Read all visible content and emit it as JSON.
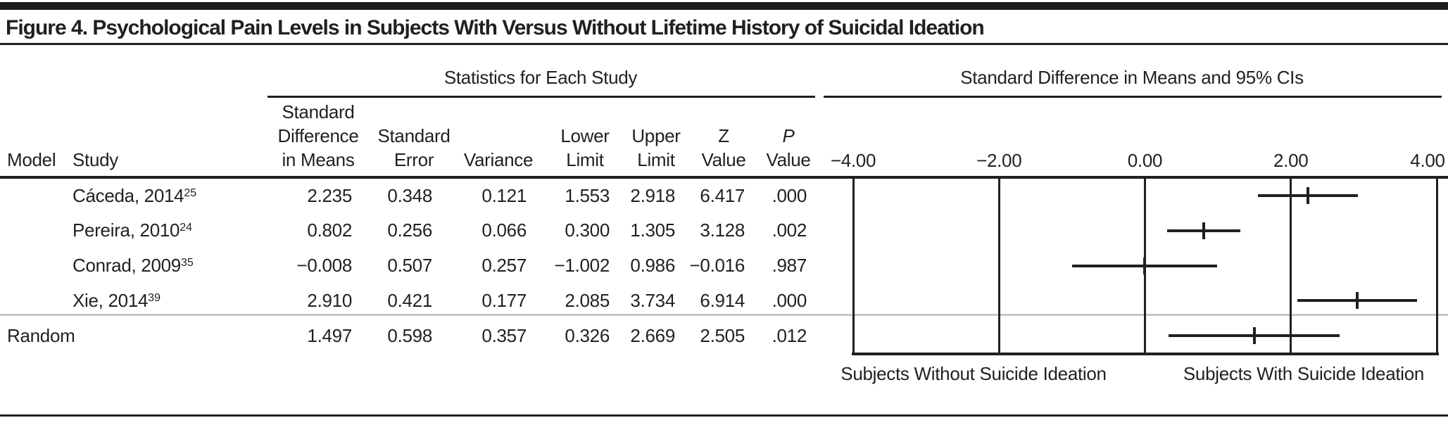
{
  "figure_title": "Figure 4. Psychological Pain Levels in Subjects With Versus Without Lifetime History of Suicidal Ideation",
  "table": {
    "spanner": "Statistics for Each Study",
    "columns": {
      "model": "Model",
      "study": "Study",
      "sdm": [
        "Standard",
        "Difference",
        "in Means"
      ],
      "se": [
        "Standard",
        "Error"
      ],
      "variance": "Variance",
      "lower": [
        "Lower",
        "Limit"
      ],
      "upper": [
        "Upper",
        "Limit"
      ],
      "z": [
        "Z",
        "Value"
      ],
      "p": [
        "P",
        "Value"
      ]
    },
    "rows": [
      {
        "model": "",
        "study": "Cáceda, 2014",
        "ref": "25",
        "sdm": "2.235",
        "se": "0.348",
        "variance": "0.121",
        "lower": "1.553",
        "upper": "2.918",
        "z": "6.417",
        "p": ".000"
      },
      {
        "model": "",
        "study": "Pereira, 2010",
        "ref": "24",
        "sdm": "0.802",
        "se": "0.256",
        "variance": "0.066",
        "lower": "0.300",
        "upper": "1.305",
        "z": "3.128",
        "p": ".002"
      },
      {
        "model": "",
        "study": "Conrad, 2009",
        "ref": "35",
        "sdm": "−0.008",
        "se": "0.507",
        "variance": "0.257",
        "lower": "−1.002",
        "upper": "0.986",
        "z": "−0.016",
        "p": ".987"
      },
      {
        "model": "",
        "study": "Xie, 2014",
        "ref": "39",
        "sdm": "2.910",
        "se": "0.421",
        "variance": "0.177",
        "lower": "2.085",
        "upper": "3.734",
        "z": "6.914",
        "p": ".000"
      },
      {
        "model": "Random",
        "study": "",
        "ref": "",
        "sdm": "1.497",
        "se": "0.598",
        "variance": "0.357",
        "lower": "0.326",
        "upper": "2.669",
        "z": "2.505",
        "p": ".012"
      }
    ]
  },
  "plot": {
    "spanner": "Standard Difference in Means and 95% CIs",
    "axis": {
      "ticks": [
        {
          "label": "−4.00",
          "value": -4
        },
        {
          "label": "−2.00",
          "value": -2
        },
        {
          "label": "0.00",
          "value": 0
        },
        {
          "label": "2.00",
          "value": 2
        },
        {
          "label": "4.00",
          "value": 4
        }
      ]
    },
    "left_label": "Subjects Without Suicide Ideation",
    "right_label": "Subjects With Suicide Ideation"
  },
  "chart_data": {
    "type": "forest",
    "title": "Standard Difference in Means and 95% CIs",
    "xlim": [
      -4,
      4
    ],
    "x_ticks": [
      -4,
      -2,
      0,
      2,
      4
    ],
    "grid": true,
    "rows": [
      {
        "label": "Cáceda, 2014 (ref 25)",
        "point": 2.235,
        "lower": 1.553,
        "upper": 2.918,
        "summary": false
      },
      {
        "label": "Pereira, 2010 (ref 24)",
        "point": 0.802,
        "lower": 0.3,
        "upper": 1.305,
        "summary": false
      },
      {
        "label": "Conrad, 2009 (ref 35)",
        "point": -0.008,
        "lower": -1.002,
        "upper": 0.986,
        "summary": false
      },
      {
        "label": "Xie, 2014 (ref 39)",
        "point": 2.91,
        "lower": 2.085,
        "upper": 3.734,
        "summary": false
      },
      {
        "label": "Random",
        "point": 1.497,
        "lower": 0.326,
        "upper": 2.669,
        "summary": true
      }
    ],
    "negative_side_label": "Subjects Without Suicide Ideation",
    "positive_side_label": "Subjects With Suicide Ideation"
  },
  "colors": {
    "ink": "#231f20",
    "separator": "#c6c6c6"
  }
}
